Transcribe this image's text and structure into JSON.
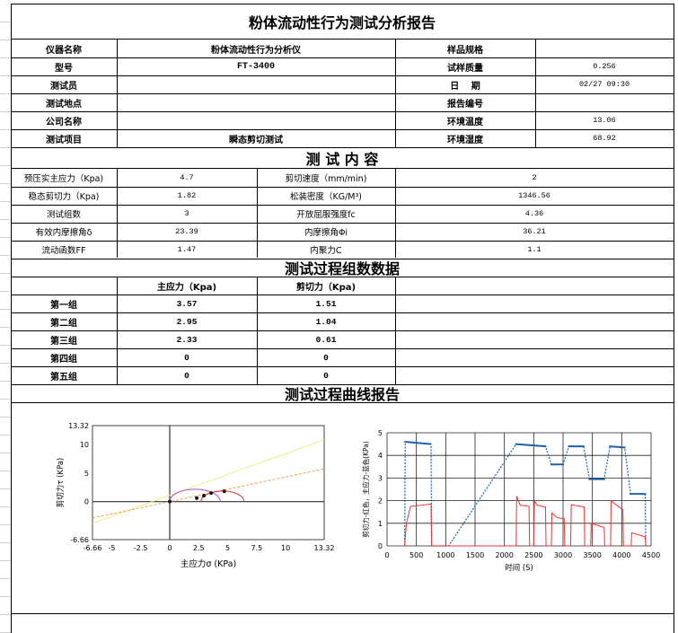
{
  "title": "粉体流动性行为测试分析报告",
  "info": {
    "rows": [
      {
        "l1": "仪器名称",
        "v1": "粉体流动性行为分析仪",
        "l2": "样品规格",
        "v2": ""
      },
      {
        "l1": "型号",
        "v1": "FT-3400",
        "l2": "试样质量",
        "v2": "0.256"
      },
      {
        "l1": "测试员",
        "v1": "",
        "l2": "日　 期",
        "v2": "02/27 09:30"
      },
      {
        "l1": "测试地点",
        "v1": "",
        "l2": "报告编号",
        "v2": ""
      },
      {
        "l1": "公司名称",
        "v1": "",
        "l2": "环境温度",
        "v2": "13.06"
      },
      {
        "l1": "测试项目",
        "v1": "瞬态剪切测试",
        "l2": "环境湿度",
        "v2": "68.92"
      }
    ]
  },
  "content": {
    "heading": "测 试 内 容",
    "rows": [
      {
        "l1": "预压实主应力（Kpa)",
        "v1": "4.7",
        "l2": "剪切速度（mm/min)",
        "v2": "2"
      },
      {
        "l1": "稳态剪切力（Kpa)",
        "v1": "1.82",
        "l2": "松装密度（KG/M³)",
        "v2": "1346.56"
      },
      {
        "l1": "测试组数",
        "v1": "3",
        "l2": "开放屈服强度fc",
        "v2": "4.36"
      },
      {
        "l1": "有效内摩擦角δ",
        "v1": "23.39",
        "l2": "内摩擦角Φi",
        "v2": "36.21"
      },
      {
        "l1": "流动函数FF",
        "v1": "1.47",
        "l2": "内聚力C",
        "v2": "1.1"
      }
    ]
  },
  "groups": {
    "heading": "测试过程组数数据",
    "col1": "主应力（Kpa)",
    "col2": "剪切力（Kpa)",
    "rows": [
      {
        "name": "第一组",
        "sigma": "3.57",
        "tau": "1.51"
      },
      {
        "name": "第二组",
        "sigma": "2.95",
        "tau": "1.04"
      },
      {
        "name": "第三组",
        "sigma": "2.33",
        "tau": "0.61"
      },
      {
        "name": "第四组",
        "sigma": "0",
        "tau": "0"
      },
      {
        "name": "第五组",
        "sigma": "0",
        "tau": "0"
      }
    ]
  },
  "curves": {
    "heading": "测试过程曲线报告"
  },
  "chart_data": [
    {
      "type": "line",
      "xlabel": "主应力σ (KPa)",
      "ylabel": "剪切力τ (KPa)",
      "xlim": [
        -6.66,
        13.32
      ],
      "ylim": [
        -6.66,
        13.32
      ],
      "xticks": [
        "-6.66",
        "-5",
        "-2.5",
        "0",
        "2.5",
        "5",
        "7.5",
        "10",
        "13.32"
      ],
      "yticks": [
        "-6.66",
        "0",
        "5",
        "10",
        "13.32"
      ],
      "points": [
        [
          0,
          0
        ],
        [
          2.33,
          0.61
        ],
        [
          2.95,
          1.04
        ],
        [
          3.57,
          1.51
        ],
        [
          4.7,
          1.82
        ]
      ],
      "mohr_circles": [
        {
          "center": 2.18,
          "radius": 2.18,
          "color": "#b050e0"
        },
        {
          "center": 4.55,
          "radius": 1.85,
          "color": "#e03030"
        }
      ],
      "lines": [
        {
          "slope": 0.732,
          "intercept": 1.1,
          "color": "#e6ee80",
          "style": "solid"
        },
        {
          "slope": 0.432,
          "intercept": 0,
          "color": "#f0a040",
          "style": "dashed"
        }
      ]
    },
    {
      "type": "line",
      "xlabel": "时间 (S)",
      "ylabel": "剪切力-红色，主应力-蓝色(KPa)",
      "xlim": [
        0,
        4500
      ],
      "ylim": [
        0,
        5
      ],
      "xticks": [
        "0",
        "500",
        "1000",
        "1500",
        "2000",
        "2500",
        "3000",
        "3500",
        "4000",
        "4500"
      ],
      "yticks": [
        "0",
        "1",
        "2",
        "3",
        "4",
        "5"
      ],
      "grid": true,
      "series": [
        {
          "color": "#1f5fa8",
          "x": [
            300,
            310,
            750,
            760,
            1050,
            2200,
            2700,
            2800,
            3000,
            3100,
            3350,
            3450,
            3700,
            3800,
            4050,
            4150,
            4400,
            4410
          ],
          "y": [
            0,
            4.6,
            4.5,
            0,
            0,
            4.5,
            4.4,
            3.6,
            3.6,
            4.4,
            4.4,
            2.95,
            2.95,
            4.4,
            4.35,
            2.3,
            2.3,
            0
          ]
        },
        {
          "color": "#f03030",
          "x": [
            300,
            330,
            400,
            750,
            760,
            2200,
            2210,
            2270,
            2420,
            2430,
            2500,
            2510,
            2560,
            2700,
            2710,
            2800,
            2810,
            2900,
            3020,
            3030,
            3130,
            3140,
            3360,
            3370,
            3470,
            3480,
            3700,
            3710,
            3810,
            3820,
            4020,
            4030,
            4160,
            4170,
            4400,
            4410
          ],
          "y": [
            0,
            1.0,
            1.75,
            1.85,
            0,
            0,
            2.2,
            1.8,
            1.75,
            0,
            0,
            2.0,
            1.8,
            1.72,
            0,
            0,
            1.45,
            1.25,
            1.2,
            0,
            0,
            1.82,
            1.72,
            0,
            0,
            1.0,
            0.82,
            0,
            0,
            1.98,
            1.6,
            0,
            0,
            0.58,
            0.4,
            0
          ]
        }
      ]
    }
  ]
}
